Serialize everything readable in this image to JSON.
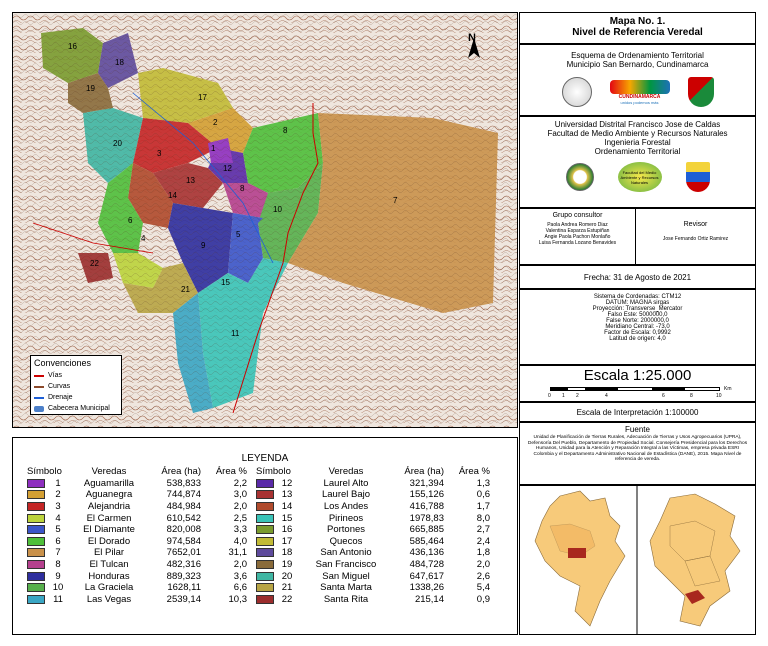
{
  "map": {
    "numbers": [
      "16",
      "18",
      "19",
      "17",
      "2",
      "20",
      "3",
      "12",
      "1",
      "8",
      "13",
      "14",
      "8",
      "10",
      "7",
      "9",
      "5",
      "6",
      "4",
      "22",
      "21",
      "11",
      "15"
    ],
    "conventions": {
      "title": "Convenciones",
      "items": [
        {
          "label": "Vías",
          "color": "#cc0000"
        },
        {
          "label": "Curvas",
          "color": "#8b4a2b"
        },
        {
          "label": "Drenaje",
          "color": "#1e5fd6"
        },
        {
          "label": "Cabecera Municipal",
          "color": "#4d80c9"
        }
      ]
    },
    "north": "N"
  },
  "title_block": {
    "line1": "Mapa No. 1.",
    "line2": "Nivel de Referencia Veredal",
    "eot1": "Esquema de Ordenamiento Territorial",
    "eot2": "Municipio San Bernardo, Cundinamarca",
    "cund1": "CUNDINAMARCA",
    "cund2": "unidos podemos más",
    "uni1": "Universidad Distrital Francisco Jose de Caldas",
    "uni2": "Facultad de Medio Ambiente y Recursos Naturales",
    "uni3": "Ingenieria Forestal",
    "uni4": "Ordenamiento Territorial",
    "fac_logo": "Facultad del Medio Ambiente y Recursos Naturales"
  },
  "group": {
    "title": "Grupo consultor",
    "members": [
      "Paola Andrea Romero Diaz",
      "Valentina Esparza Estupiñan",
      "Angie Paola Pachon Monlaño",
      "Luisa Fernanda Lozano Benavides"
    ],
    "reviewer_title": "Revisor",
    "reviewer": "Jose Fernando Ortiz Ramirez"
  },
  "date": "Frecha: 31 de Agosto de 2021",
  "crs": [
    "Sistema de Cordenadas: CTM12",
    "DATUM: MAGNA sirgas",
    "Proyección: Transverse_Mercator",
    "Falso Este: 5000000,0",
    "False Norte: 2000000,0",
    "Meridiano Central: -73,0",
    "Factor de Escala: 0,9992",
    "Latitud de origen: 4,0"
  ],
  "scale": {
    "title": "Escala 1:25.000",
    "ticks": [
      "0",
      "1",
      "2",
      "4",
      "6",
      "8",
      "10"
    ],
    "unit": "Km",
    "interp": "Escala de Interpretación 1:100000"
  },
  "source": {
    "title": "Fuente",
    "text": "Unidad de Planificación de Tierras Rurales, Adecuación de Tierras y Usos Agropecuarios (UPRA), Defensoría Del Pueblo, Departamento de Propiedad Social. Consejería Presidencial para los Derechos Humanos, Unidad para la Atención y Reparación Integral a las Víctimas, empresa privada ESRI Colombia y el Departamento Administrativo Nacional de Estadística (DANE), 2015. Mapa Nivel de referencia de vereda."
  },
  "legend": {
    "title": "LEYENDA",
    "headers": {
      "symbol": "Símbolo",
      "vereda": "Veredas",
      "area": "Área (ha)",
      "pct": "Área %"
    },
    "left": [
      {
        "n": "1",
        "name": "Aguamarilla",
        "area": "538,833",
        "pct": "2,2",
        "color": "#8e2fbf"
      },
      {
        "n": "2",
        "name": "Aguanegra",
        "area": "744,874",
        "pct": "3,0",
        "color": "#d4a033"
      },
      {
        "n": "3",
        "name": "Alejandria",
        "area": "484,984",
        "pct": "2,0",
        "color": "#c42525"
      },
      {
        "n": "4",
        "name": "El Carmen",
        "area": "610,542",
        "pct": "2,5",
        "color": "#bcd43c"
      },
      {
        "n": "5",
        "name": "El Diamante",
        "area": "820,008",
        "pct": "3,3",
        "color": "#3b55c9"
      },
      {
        "n": "6",
        "name": "El Dorado",
        "area": "974,584",
        "pct": "4,0",
        "color": "#4fbf3a"
      },
      {
        "n": "7",
        "name": "El Pilar",
        "area": "7652,01",
        "pct": "31,1",
        "color": "#c9914a"
      },
      {
        "n": "8",
        "name": "El Tulcan",
        "area": "482,316",
        "pct": "2,0",
        "color": "#b5408e"
      },
      {
        "n": "9",
        "name": "Honduras",
        "area": "889,323",
        "pct": "3,6",
        "color": "#2e2e9e"
      },
      {
        "n": "10",
        "name": "La Graciela",
        "area": "1628,11",
        "pct": "6,6",
        "color": "#57b04c"
      },
      {
        "n": "11",
        "name": "Las Vegas",
        "area": "2539,14",
        "pct": "10,3",
        "color": "#3aa6c4"
      }
    ],
    "right": [
      {
        "n": "12",
        "name": "Laurel Alto",
        "area": "321,394",
        "pct": "1,3",
        "color": "#5a2aa8"
      },
      {
        "n": "13",
        "name": "Laurel Bajo",
        "area": "155,126",
        "pct": "0,6",
        "color": "#a83232"
      },
      {
        "n": "14",
        "name": "Los Andes",
        "area": "416,788",
        "pct": "1,7",
        "color": "#b04a2c"
      },
      {
        "n": "15",
        "name": "Pirineos",
        "area": "1978,83",
        "pct": "8,0",
        "color": "#39c4b8"
      },
      {
        "n": "16",
        "name": "Portones",
        "area": "665,885",
        "pct": "2,7",
        "color": "#7a9b2e"
      },
      {
        "n": "17",
        "name": "Quecos",
        "area": "585,464",
        "pct": "2,4",
        "color": "#c2bb36"
      },
      {
        "n": "18",
        "name": "San Antonio",
        "area": "436,136",
        "pct": "1,8",
        "color": "#5e4a9c"
      },
      {
        "n": "19",
        "name": "San Francisco",
        "area": "484,728",
        "pct": "2,0",
        "color": "#8a6b3a"
      },
      {
        "n": "20",
        "name": "San Miguel",
        "area": "647,617",
        "pct": "2,6",
        "color": "#3fb6a3"
      },
      {
        "n": "21",
        "name": "Santa Marta",
        "area": "1338,26",
        "pct": "5,4",
        "color": "#b8a545"
      },
      {
        "n": "22",
        "name": "Santa Rita",
        "area": "215,14",
        "pct": "0,9",
        "color": "#9b2d2d"
      }
    ]
  }
}
